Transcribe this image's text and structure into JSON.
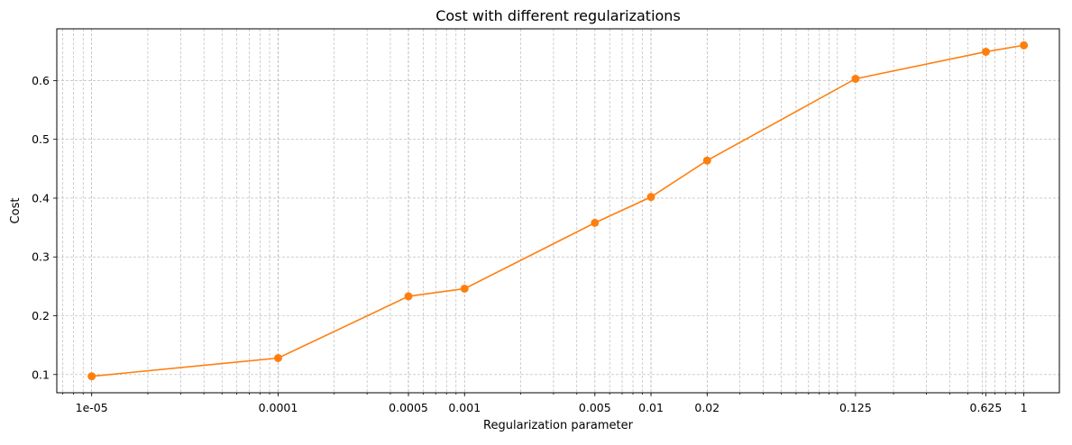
{
  "chart_data": {
    "type": "line",
    "title": "Cost with different regularizations",
    "xlabel": "Regularization parameter",
    "ylabel": "Cost",
    "x_scale": "log",
    "xlim": [
      6.5e-06,
      1.55
    ],
    "ylim": [
      0.069,
      0.688
    ],
    "grid": true,
    "grid_which": "both",
    "x_ticks": [
      {
        "value": 1e-05,
        "label": "1e-05"
      },
      {
        "value": 0.0001,
        "label": "0.0001"
      },
      {
        "value": 0.0005,
        "label": "0.0005"
      },
      {
        "value": 0.001,
        "label": "0.001"
      },
      {
        "value": 0.005,
        "label": "0.005"
      },
      {
        "value": 0.01,
        "label": "0.01"
      },
      {
        "value": 0.02,
        "label": "0.02"
      },
      {
        "value": 0.125,
        "label": "0.125"
      },
      {
        "value": 0.625,
        "label": "0.625"
      },
      {
        "value": 1,
        "label": "1"
      }
    ],
    "y_ticks": [
      {
        "value": 0.1,
        "label": "0.1"
      },
      {
        "value": 0.2,
        "label": "0.2"
      },
      {
        "value": 0.3,
        "label": "0.3"
      },
      {
        "value": 0.4,
        "label": "0.4"
      },
      {
        "value": 0.5,
        "label": "0.5"
      },
      {
        "value": 0.6,
        "label": "0.6"
      }
    ],
    "series": [
      {
        "color": "#ff7f0e",
        "marker": "circle",
        "x": [
          1e-05,
          0.0001,
          0.0005,
          0.001,
          0.005,
          0.01,
          0.02,
          0.125,
          0.625,
          1
        ],
        "y": [
          0.097,
          0.128,
          0.233,
          0.246,
          0.358,
          0.402,
          0.464,
          0.603,
          0.649,
          0.66
        ]
      }
    ]
  },
  "colors": {
    "line": "#ff7f0e",
    "grid": "#b0b0b0",
    "axes": "#000000",
    "background": "#ffffff"
  }
}
